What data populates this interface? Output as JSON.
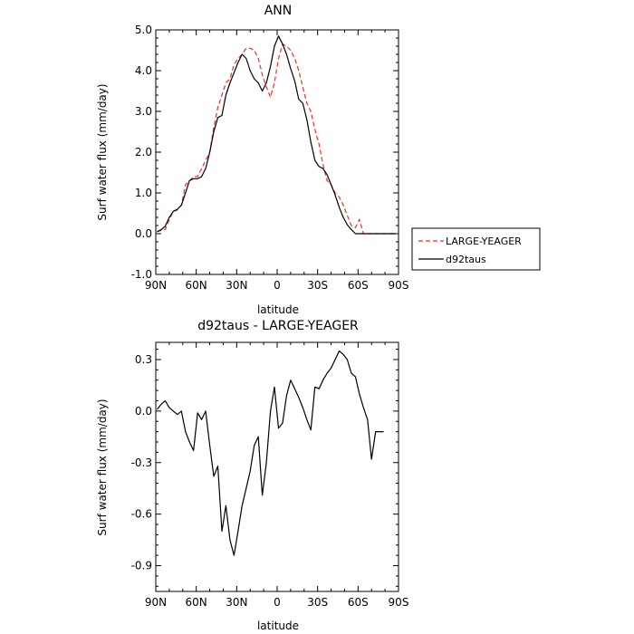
{
  "chart_data": [
    {
      "type": "line",
      "title": "ANN",
      "xlabel": "latitude",
      "ylabel": "Surf water flux (mm/day)",
      "xlim": [
        90,
        -90
      ],
      "ylim": [
        -1.0,
        5.0
      ],
      "x_ticks": [
        90,
        60,
        30,
        0,
        -30,
        -60,
        -90
      ],
      "x_tick_labels": [
        "90N",
        "60N",
        "30N",
        "0",
        "30S",
        "60S",
        "90S"
      ],
      "y_ticks": [
        -1.0,
        0.0,
        1.0,
        2.0,
        3.0,
        4.0,
        5.0
      ],
      "y_tick_labels": [
        "-1.0",
        "0.0",
        "1.0",
        "2.0",
        "3.0",
        "4.0",
        "5.0"
      ],
      "grid": false,
      "legend": "right, outside plot",
      "series": [
        {
          "name": "LARGE-YEAGER",
          "color": "#e8302a",
          "dash": "dashed",
          "x": [
            89,
            86,
            83,
            80,
            77,
            74,
            71,
            68,
            65,
            62,
            59,
            56,
            53,
            50,
            47,
            44,
            41,
            38,
            35,
            32,
            29,
            26,
            23,
            20,
            17,
            14,
            11,
            8,
            5,
            2,
            -1,
            -4,
            -7,
            -10,
            -13,
            -16,
            -19,
            -22,
            -25,
            -28,
            -31,
            -34,
            -37,
            -40,
            -43,
            -46,
            -49,
            -52,
            -55,
            -58,
            -61,
            -64,
            -67,
            -70,
            -73,
            -76,
            -79,
            -82,
            -85,
            -88
          ],
          "y": [
            0.05,
            0.08,
            0.1,
            0.35,
            0.55,
            0.58,
            0.7,
            1.2,
            1.3,
            1.4,
            1.4,
            1.6,
            1.8,
            2.0,
            2.6,
            3.1,
            3.4,
            3.7,
            3.8,
            4.15,
            4.3,
            4.4,
            4.55,
            4.55,
            4.5,
            4.3,
            3.9,
            3.6,
            3.35,
            3.7,
            4.3,
            4.65,
            4.6,
            4.5,
            4.3,
            4.0,
            3.6,
            3.2,
            3.0,
            2.55,
            2.2,
            1.7,
            1.3,
            1.2,
            1.0,
            0.9,
            0.7,
            0.45,
            0.2,
            0.15,
            0.35,
            0.0,
            0.0,
            0.0,
            0.0,
            0.0,
            0.0,
            0.0,
            0.0,
            0.0
          ]
        },
        {
          "name": "d92taus",
          "color": "#000000",
          "dash": "solid",
          "x": [
            89,
            86,
            83,
            80,
            77,
            74,
            71,
            68,
            65,
            62,
            59,
            56,
            53,
            50,
            47,
            44,
            41,
            38,
            35,
            32,
            29,
            26,
            23,
            20,
            17,
            14,
            11,
            8,
            5,
            2,
            -1,
            -4,
            -7,
            -10,
            -13,
            -16,
            -19,
            -22,
            -25,
            -28,
            -31,
            -34,
            -37,
            -40,
            -43,
            -46,
            -49,
            -52,
            -55,
            -58,
            -61,
            -64,
            -67,
            -70,
            -73,
            -76,
            -79,
            -82,
            -85,
            -88
          ],
          "y": [
            0.05,
            0.1,
            0.18,
            0.4,
            0.55,
            0.6,
            0.7,
            1.0,
            1.3,
            1.35,
            1.35,
            1.4,
            1.6,
            2.0,
            2.5,
            2.85,
            2.9,
            3.4,
            3.7,
            3.95,
            4.2,
            4.4,
            4.3,
            4.0,
            3.8,
            3.7,
            3.5,
            3.7,
            4.1,
            4.6,
            4.85,
            4.65,
            4.4,
            4.05,
            3.75,
            3.3,
            3.2,
            2.8,
            2.25,
            1.8,
            1.65,
            1.6,
            1.45,
            1.2,
            0.95,
            0.65,
            0.4,
            0.22,
            0.1,
            0.0,
            0.0,
            0.0,
            0.0,
            0.0,
            0.0,
            0.0,
            0.0,
            0.0,
            0.0,
            0.0
          ]
        }
      ]
    },
    {
      "type": "line",
      "title": "d92taus - LARGE-YEAGER",
      "xlabel": "latitude",
      "ylabel": "Surf water flux (mm/day)",
      "xlim": [
        90,
        -90
      ],
      "ylim": [
        -1.05,
        0.4
      ],
      "x_ticks": [
        90,
        60,
        30,
        0,
        -30,
        -60,
        -90
      ],
      "x_tick_labels": [
        "90N",
        "60N",
        "30N",
        "0",
        "30S",
        "60S",
        "90S"
      ],
      "y_ticks": [
        -0.9,
        -0.6,
        -0.3,
        0.0,
        0.3
      ],
      "y_tick_labels": [
        "-0.9",
        "-0.6",
        "-0.3",
        "0.0",
        "0.3"
      ],
      "grid": false,
      "legend": "none",
      "series": [
        {
          "color": "#000000",
          "dash": "solid",
          "x": [
            89,
            86,
            83,
            80,
            77,
            74,
            71,
            68,
            65,
            62,
            59,
            56,
            53,
            50,
            47,
            44,
            41,
            38,
            35,
            32,
            29,
            26,
            23,
            20,
            17,
            14,
            11,
            8,
            5,
            2,
            -1,
            -4,
            -7,
            -10,
            -13,
            -16,
            -19,
            -22,
            -25,
            -28,
            -31,
            -34,
            -37,
            -40,
            -43,
            -46,
            -49,
            -52,
            -55,
            -58,
            -61,
            -64,
            -67,
            -70,
            -73,
            -76,
            -79
          ],
          "y": [
            0.01,
            0.04,
            0.06,
            0.02,
            0.0,
            -0.02,
            0.0,
            -0.12,
            -0.18,
            -0.23,
            -0.01,
            -0.05,
            0.0,
            -0.2,
            -0.38,
            -0.32,
            -0.7,
            -0.55,
            -0.75,
            -0.84,
            -0.7,
            -0.55,
            -0.45,
            -0.35,
            -0.2,
            -0.15,
            -0.49,
            -0.3,
            0.0,
            0.14,
            -0.1,
            -0.07,
            0.09,
            0.18,
            0.13,
            0.08,
            0.02,
            -0.05,
            -0.11,
            0.14,
            0.13,
            0.18,
            0.22,
            0.25,
            0.3,
            0.35,
            0.33,
            0.3,
            0.22,
            0.2,
            0.1,
            0.02,
            -0.05,
            -0.28,
            -0.12,
            -0.12,
            -0.12
          ]
        }
      ]
    }
  ]
}
